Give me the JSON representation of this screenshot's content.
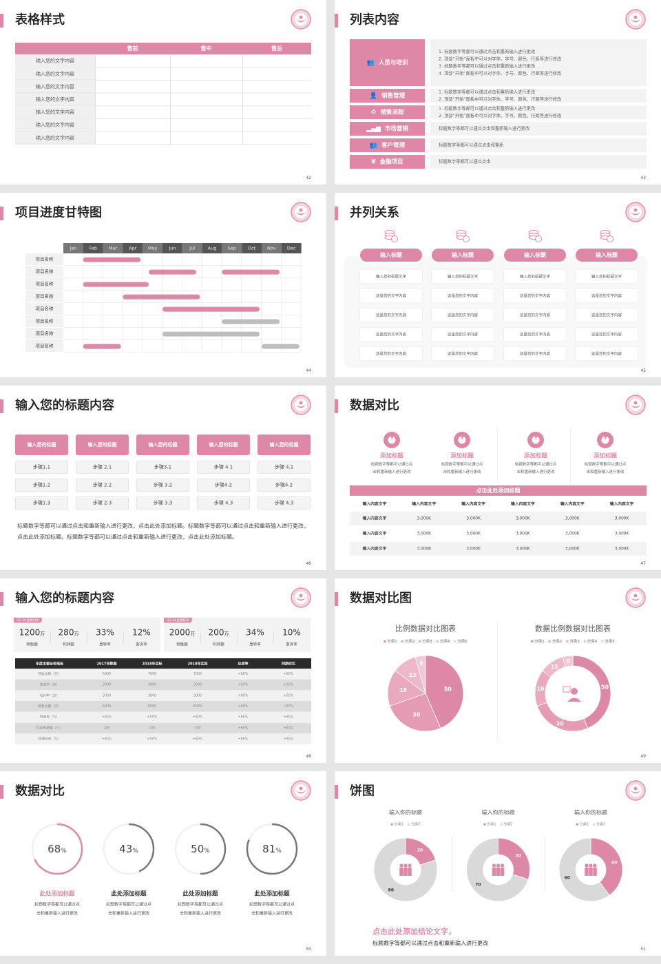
{
  "colors": {
    "accent": "#de88a7",
    "accent_light": "#f2c8d6",
    "gray": "#bdbdbd",
    "ring_gray": "#777777",
    "dark_header": "#2a2a2a",
    "donut_gray": "#d9d9d9"
  },
  "slides": [
    {
      "title": "表格样式",
      "page": "42",
      "table": {
        "headers": [
          "",
          "售前",
          "售中",
          "售后"
        ],
        "rows": [
          "输入您的文字内容",
          "输入您的文字内容",
          "输入您的文字内容",
          "输入您的文字内容",
          "输入您的文字内容",
          "输入您的文字内容",
          "输入您的文字内容"
        ]
      }
    },
    {
      "title": "列表内容",
      "page": "43",
      "items": [
        {
          "icon": "people-training-icon",
          "label": "人员与培训",
          "lines": [
            "1.   标题数字等都可以通过点击和重新输入进行更改",
            "2.   顶部“开始”面板中可以对字体、字号、颜色、行距等进行修改",
            "3.   标题数字等都可以通过点击和重新输入进行更改",
            "4.   顶部“开始”面板中可以对字体、字号、颜色、行距等进行修改"
          ]
        },
        {
          "icon": "sales-management-icon",
          "label": "销售管理",
          "lines": [
            "1.   标题数字等都可以通过点击和重新输入进行更改",
            "2.   顶部“开始”面板中可以对字体、字号、颜色、行距等进行修改"
          ]
        },
        {
          "icon": "sales-process-icon",
          "label": "销售流程",
          "lines": [
            "1.   标题数字等都可以通过点击和重新输入进行更改",
            "2.   顶部“开始”面板中可以对字体、字号、颜色、行距等进行修改"
          ]
        },
        {
          "icon": "bar-chart-icon",
          "label": "市场营销",
          "lines": [
            "标题数字等都可以通过点击和重新输入进行更改"
          ]
        },
        {
          "icon": "customers-icon",
          "label": "客户管理",
          "lines": [
            "标题数字等都可以通过点击和重新"
          ]
        },
        {
          "icon": "finance-icon",
          "label": "金融项目",
          "lines": [
            "标题数字等都可以通过点击"
          ]
        }
      ]
    },
    {
      "title": "项目进度甘特图",
      "page": "44",
      "months": [
        "Jan",
        "Feb",
        "Mar",
        "Apr",
        "May",
        "Jun",
        "Jul",
        "Aug",
        "Sep",
        "Oct",
        "Nov",
        "Dec"
      ],
      "tasks": [
        {
          "label": "项目名称",
          "bars": [
            {
              "start": 1.0,
              "end": 3.9,
              "status": "active"
            }
          ]
        },
        {
          "label": "项目名称",
          "bars": [
            {
              "start": 4.3,
              "end": 6.7,
              "status": "active"
            },
            {
              "start": 8.0,
              "end": 10.9,
              "status": "active"
            }
          ]
        },
        {
          "label": "项目名称",
          "bars": [
            {
              "start": 1.0,
              "end": 4.3,
              "status": "active"
            }
          ]
        },
        {
          "label": "项目名称",
          "bars": [
            {
              "start": 3.0,
              "end": 6.9,
              "status": "active"
            }
          ]
        },
        {
          "label": "项目名称",
          "bars": [
            {
              "start": 5.0,
              "end": 9.9,
              "status": "active"
            }
          ]
        },
        {
          "label": "项目名称",
          "bars": [
            {
              "start": 8.0,
              "end": 10.9,
              "status": "planned"
            }
          ]
        },
        {
          "label": "项目名称",
          "bars": [
            {
              "start": 5.0,
              "end": 9.9,
              "status": "planned"
            }
          ]
        },
        {
          "label": "项目名称",
          "bars": [
            {
              "start": 1.0,
              "end": 2.9,
              "status": "active"
            },
            {
              "start": 10.0,
              "end": 11.9,
              "status": "planned"
            }
          ]
        }
      ]
    },
    {
      "title": "并列关系",
      "page": "45",
      "columns": [
        {
          "icon": "coins-icon",
          "heading": "输入标题",
          "cells": [
            "输入您的标题文字",
            "这是您的文字内容",
            "这是您的文字内容",
            "这是您的文字内容",
            "这是您的文字内容"
          ]
        },
        {
          "icon": "coins-icon",
          "heading": "输入标题",
          "cells": [
            "输入您的标题文字",
            "这是您的文字内容",
            "这是您的文字内容",
            "这是您的文字内容",
            "这是您的文字内容"
          ]
        },
        {
          "icon": "coins-icon",
          "heading": "输入标题",
          "cells": [
            "输入您的标题文字",
            "这是您的文字内容",
            "这是您的文字内容",
            "这是您的文字内容",
            "这是您的文字内容"
          ]
        },
        {
          "icon": "coins-icon",
          "heading": "输入标题",
          "cells": [
            "输入您的标题文字",
            "这是您的文字内容",
            "这是您的文字内容",
            "这是您的文字内容",
            "这是您的文字内容"
          ]
        }
      ]
    },
    {
      "title": "输入您的标题内容",
      "page": "46",
      "columns": [
        {
          "heading": "输入您的标题",
          "steps": [
            "步骤1.1",
            "步骤1.2",
            "步骤1.3"
          ]
        },
        {
          "heading": "输入您的标题",
          "steps": [
            "步骤 2.1",
            "步骤 2.2",
            "步骤 2.3"
          ]
        },
        {
          "heading": "输入您的标题",
          "steps": [
            "步骤3.1",
            "步骤 3.2",
            "步骤 3.3"
          ]
        },
        {
          "heading": "输入您的标题",
          "steps": [
            "步骤 4.1",
            "步骤4.2",
            "步骤 4.3"
          ]
        },
        {
          "heading": "输入您的标题",
          "steps": [
            "步骤 4.1",
            "步骤4.2",
            "步骤 4.3"
          ]
        }
      ],
      "paragraph": "标题数字等都可以通过点击和重新输入进行更改，点击此处添加标题。标题数字等都可以通过点击和重新输入进行更改，点击此处添加标题。标题数字等都可以通过点击和重新输入进行更改，点击此处添加标题。"
    },
    {
      "title": "数据对比",
      "page": "47",
      "features": [
        {
          "icon": "pie-chart-icon",
          "heading": "添加标题",
          "desc": [
            "标题数字等都可以通过点",
            "击和重新输入进行更改"
          ]
        },
        {
          "icon": "pie-chart-icon",
          "heading": "添加标题",
          "desc": [
            "标题数字等都可以通过点",
            "击和重新输入进行更改"
          ]
        },
        {
          "icon": "pie-chart-icon",
          "heading": "添加标题",
          "desc": [
            "标题数字等都可以通过点",
            "击和重新输入进行更改"
          ]
        },
        {
          "icon": "pie-chart-icon",
          "heading": "添加标题",
          "desc": [
            "标题数字等都可以通过点",
            "击和重新输入进行更改"
          ]
        }
      ],
      "banner": "点击此处添加标题",
      "table": {
        "header": [
          "输入内容文字",
          "输入内容文字",
          "输入内容文字",
          "输入内容文字",
          "输入内容文字",
          "输入内容文字"
        ],
        "rows": [
          [
            "输入内容文字",
            "3,000K",
            "3,000K",
            "3,000K",
            "3,000K",
            "3,000K"
          ],
          [
            "输入内容文字",
            "3,000K",
            "3,000K",
            "3,000K",
            "3,000K",
            "3,000K"
          ],
          [
            "输入内容文字",
            "3,000K",
            "3,000K",
            "3,000K",
            "3,000K",
            "3,000K"
          ]
        ]
      }
    },
    {
      "title": "输入您的标题内容",
      "page": "48",
      "cards": [
        {
          "tag": "Q1-Q2业绩对比",
          "stats": [
            {
              "value": "1200",
              "unit": "万",
              "label": "销售额"
            },
            {
              "value": "280",
              "unit": "万",
              "label": "利润额"
            },
            {
              "value": "33%",
              "unit": "",
              "label": "周转率"
            },
            {
              "value": "12%",
              "unit": "",
              "label": "客诉率"
            }
          ]
        },
        {
          "tag": "Q3-Q4业绩综述",
          "stats": [
            {
              "value": "2000",
              "unit": "万",
              "label": "销售额"
            },
            {
              "value": "200",
              "unit": "万",
              "label": "利润额"
            },
            {
              "value": "34%",
              "unit": "",
              "label": "周转率"
            },
            {
              "value": "10%",
              "unit": "",
              "label": "客诉率"
            }
          ]
        }
      ],
      "table": {
        "header": [
          "年度主要业务指标",
          "2017年数据",
          "2018年目标",
          "2018年实际",
          "达成率",
          "同期对比"
        ],
        "rows": [
          [
            "营收总额（万）",
            "6000",
            "7000",
            "7000",
            "+60%",
            "+60%"
          ],
          [
            "总成本（万）",
            "3000",
            "3000",
            "3000",
            "+60%",
            "+60%"
          ],
          [
            "毛利率（万）",
            "3000",
            "3000",
            "3000",
            "+60%",
            "+60%"
          ],
          [
            "销售总额（万）",
            "6000",
            "6000",
            "6000",
            "+60%",
            "+60%"
          ],
          [
            "营销率（%）",
            "+60%",
            "+50%",
            "+60%",
            "+60%",
            "+60%"
          ],
          [
            "供应商数量（个）",
            "100",
            "100",
            "100",
            "+60%",
            "+60%"
          ],
          [
            "管理效率（%）",
            "+60%",
            "+50%",
            "+60%",
            "+60%",
            "+60%"
          ]
        ]
      }
    },
    {
      "title": "数据对比图",
      "page": "49"
    },
    {
      "title": "数据对比",
      "page": "50",
      "rings": [
        {
          "percent": 68,
          "unit": "%",
          "heading": "此处添加标题",
          "highlight": true,
          "desc": [
            "标题数字等都可以通过点",
            "击和重新输入进行更改"
          ]
        },
        {
          "percent": 43,
          "unit": "%",
          "heading": "此处添加标题",
          "highlight": false,
          "desc": [
            "标题数字等都可以通过点",
            "击和重新输入进行更改"
          ]
        },
        {
          "percent": 50,
          "unit": "%",
          "heading": "此处添加标题",
          "highlight": false,
          "desc": [
            "标题数字等都可以通过点",
            "击和重新输入进行更改"
          ]
        },
        {
          "percent": 81,
          "unit": "%",
          "heading": "此处添加标题",
          "highlight": false,
          "desc": [
            "标题数字等都可以通过点",
            "击和重新输入进行更改"
          ]
        }
      ]
    },
    {
      "title": "饼图",
      "page": "51",
      "conclusion": "点击此处添加结论文字，",
      "conclusion_sub": "标题数字等都可以通过点击和重新输入进行更改"
    }
  ],
  "chart_data": [
    {
      "type": "pie",
      "title": "比例数据对比图表",
      "categories": [
        "分类1",
        "分类2",
        "分类3",
        "分类4",
        "分类5"
      ],
      "values": [
        50,
        30,
        18,
        12,
        5
      ],
      "legend": "top",
      "colors": [
        "#de88a7",
        "#e59bb4",
        "#e9a9bf",
        "#edb8ca",
        "#f2c8d6"
      ]
    },
    {
      "type": "pie",
      "donut": true,
      "center_icon": "consultant-icon",
      "title": "数据比例数据对比图表",
      "categories": [
        "分类1",
        "分类2",
        "分类3",
        "分类4",
        "分类5"
      ],
      "values": [
        50,
        30,
        18,
        12,
        5
      ],
      "legend": "top",
      "colors": [
        "#de88a7",
        "#e59bb4",
        "#e9a9bf",
        "#edb8ca",
        "#f2c8d6"
      ]
    },
    {
      "type": "pie",
      "donut": true,
      "center_icon": "team-icon",
      "title": "输入你的标题",
      "categories": [
        "分类1",
        "分类2"
      ],
      "values": [
        20,
        80
      ],
      "legend": "top",
      "colors": [
        "#de88a7",
        "#d9d9d9"
      ]
    },
    {
      "type": "pie",
      "donut": true,
      "center_icon": "team-icon",
      "title": "输入你的标题",
      "categories": [
        "分类1",
        "分类2"
      ],
      "values": [
        30,
        70
      ],
      "legend": "top",
      "colors": [
        "#de88a7",
        "#d9d9d9"
      ]
    },
    {
      "type": "pie",
      "donut": true,
      "center_icon": "team-icon",
      "title": "输入你的标题",
      "categories": [
        "分类1",
        "分类2"
      ],
      "values": [
        40,
        60
      ],
      "legend": "top",
      "colors": [
        "#de88a7",
        "#d9d9d9"
      ]
    }
  ]
}
